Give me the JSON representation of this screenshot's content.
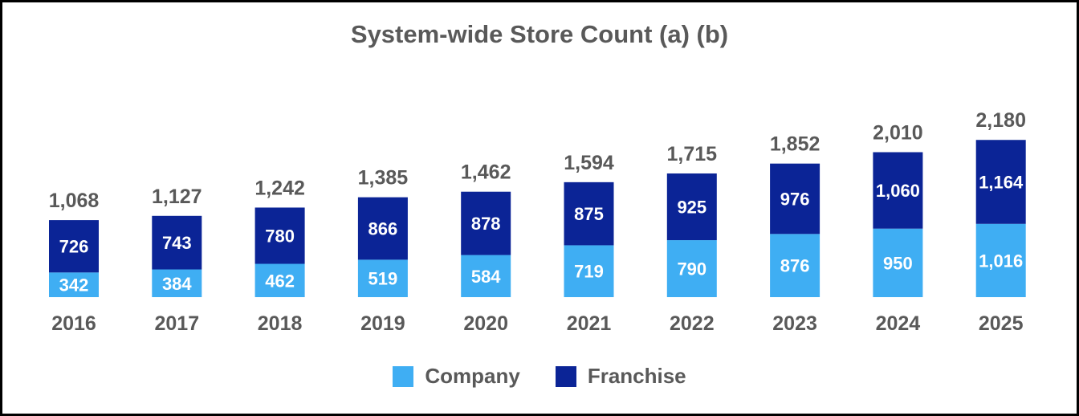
{
  "chart_data": {
    "type": "bar",
    "stacked": true,
    "title": "System-wide Store Count (a) (b)",
    "categories": [
      "2016",
      "2017",
      "2018",
      "2019",
      "2020",
      "2021",
      "2022",
      "2023",
      "2024",
      "2025"
    ],
    "series": [
      {
        "name": "Company",
        "color": "#3FAEF3",
        "values": [
          342,
          384,
          462,
          519,
          584,
          719,
          790,
          876,
          950,
          1016
        ],
        "labels": [
          "342",
          "384",
          "462",
          "519",
          "584",
          "719",
          "790",
          "876",
          "950",
          "1,016"
        ]
      },
      {
        "name": "Franchise",
        "color": "#0B2496",
        "values": [
          726,
          743,
          780,
          866,
          878,
          875,
          925,
          976,
          1060,
          1164
        ],
        "labels": [
          "726",
          "743",
          "780",
          "866",
          "878",
          "875",
          "925",
          "976",
          "1,060",
          "1,164"
        ]
      }
    ],
    "totals": [
      1068,
      1127,
      1242,
      1385,
      1462,
      1594,
      1715,
      1852,
      2010,
      2180
    ],
    "total_labels": [
      "1,068",
      "1,127",
      "1,242",
      "1,385",
      "1,462",
      "1,594",
      "1,715",
      "1,852",
      "2,010",
      "2,180"
    ],
    "xlabel": "",
    "ylabel": "",
    "grid": false,
    "legend_position": "bottom-center"
  },
  "legend": {
    "company_label": "Company",
    "franchise_label": "Franchise",
    "company_color": "#3FAEF3",
    "franchise_color": "#0B2496"
  }
}
